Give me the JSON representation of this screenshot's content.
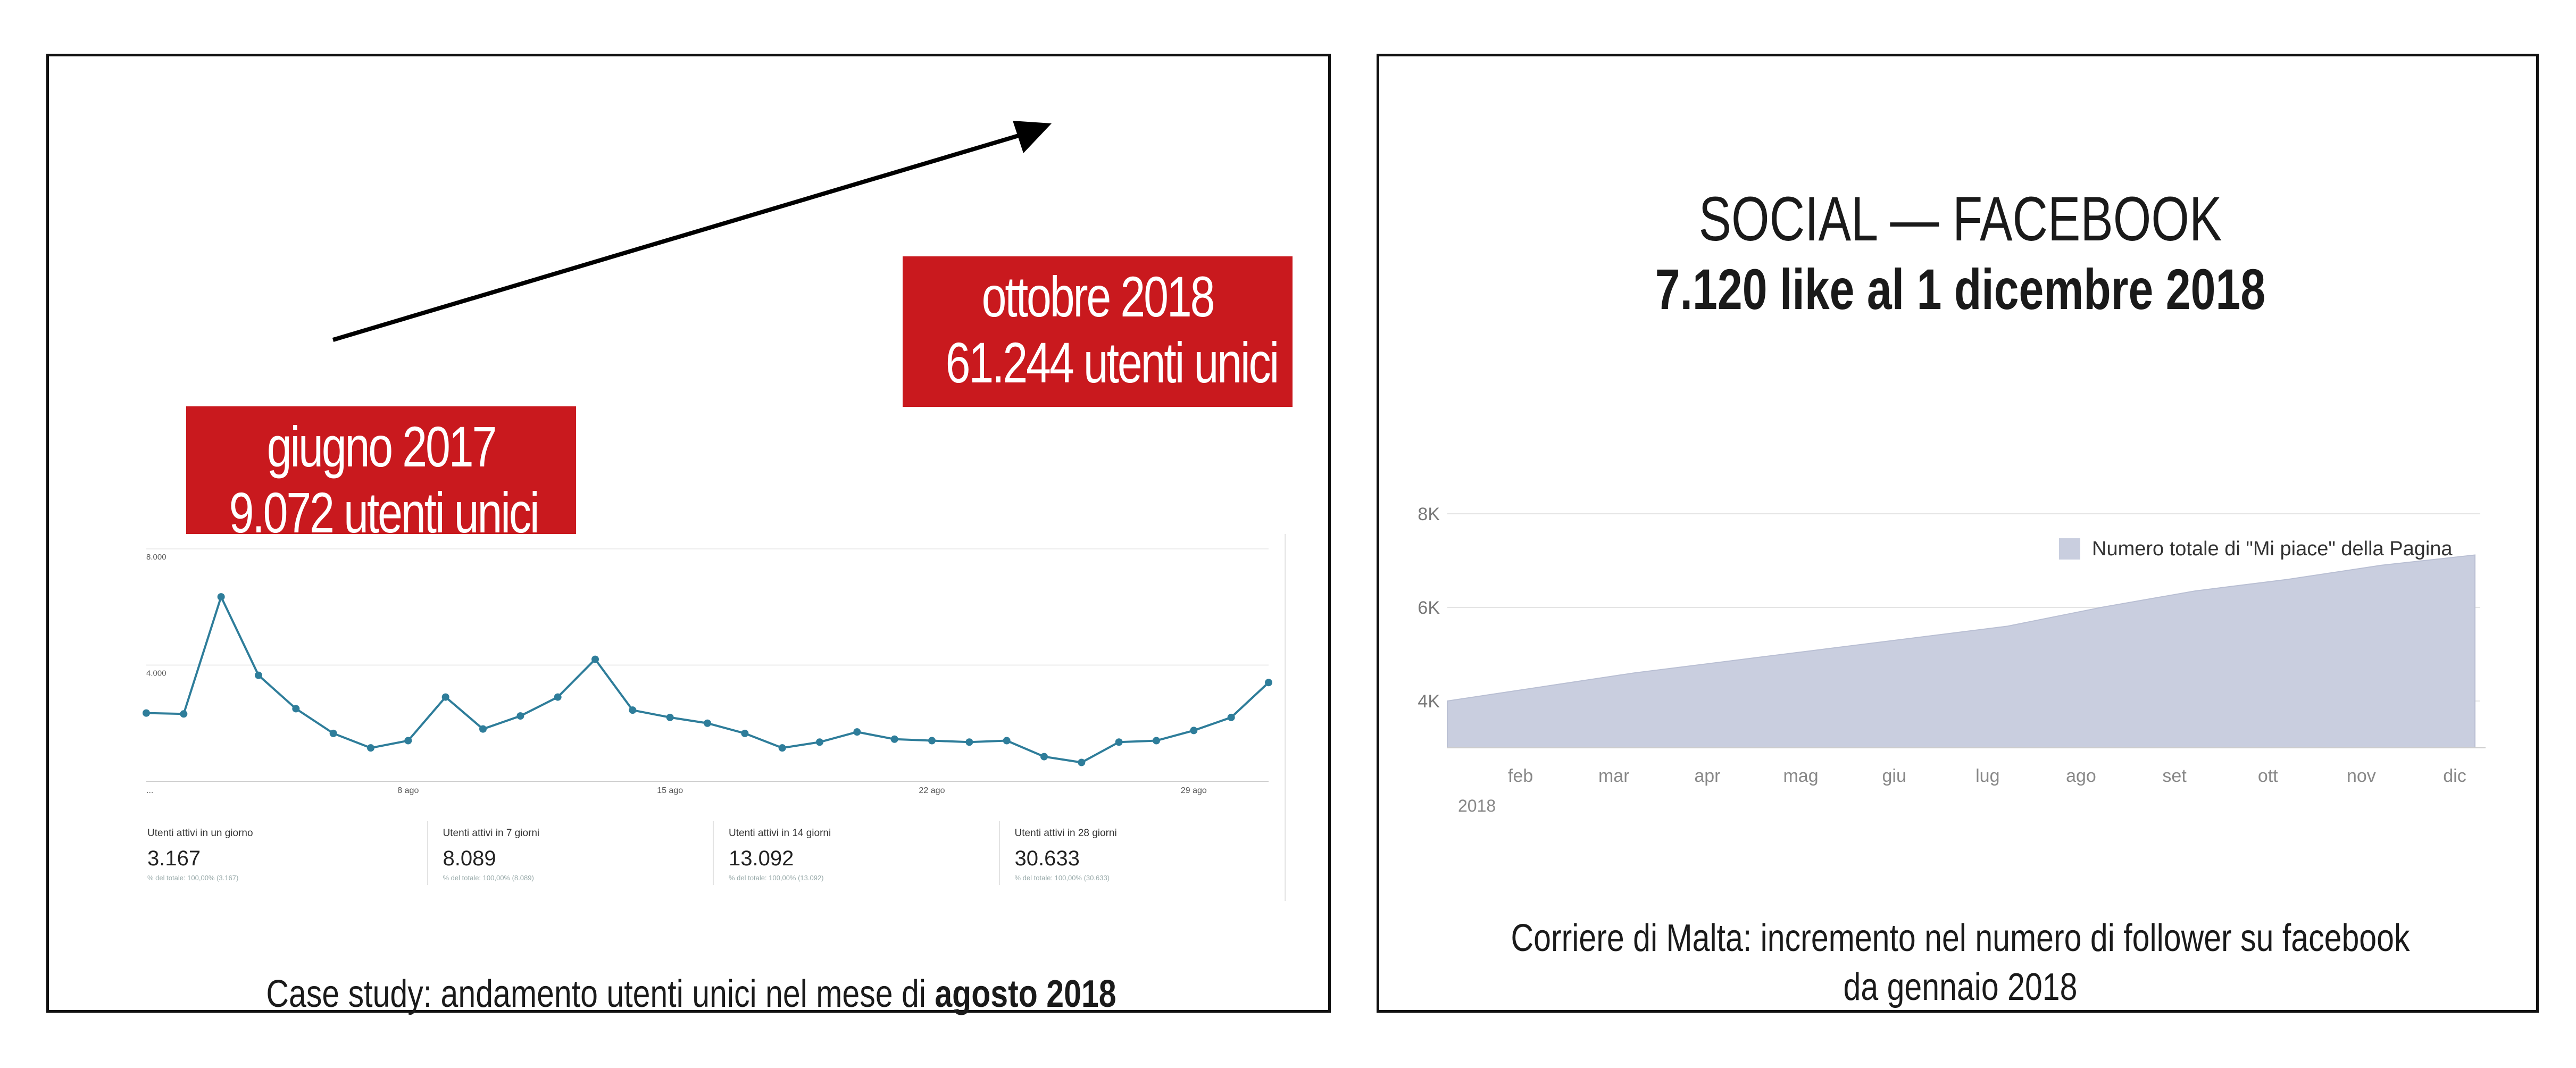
{
  "slide_left": {
    "box_june": {
      "line1": "giugno 2017",
      "line2": "9.072 utenti unici"
    },
    "box_oct": {
      "line1": "ottobre 2018",
      "line2": "61.244 utenti unici"
    },
    "caption_prefix": "Case study: andamento utenti unici nel mese di ",
    "caption_bold": "agosto 2018",
    "metrics": [
      {
        "label": "Utenti attivi in un giorno",
        "value": "3.167",
        "sub": "% del totale: 100,00% (3.167)"
      },
      {
        "label": "Utenti attivi in 7 giorni",
        "value": "8.089",
        "sub": "% del totale: 100,00% (8.089)"
      },
      {
        "label": "Utenti attivi in 14 giorni",
        "value": "13.092",
        "sub": "% del totale: 100,00% (13.092)"
      },
      {
        "label": "Utenti attivi in 28 giorni",
        "value": "30.633",
        "sub": "% del totale: 100,00% (30.633)"
      }
    ]
  },
  "slide_right": {
    "title_line1": "SOCIAL — FACEBOOK",
    "title_line2": "7.120 like al 1 dicembre 2018",
    "caption_line1": "Corriere di Malta: incremento nel numero di follower su facebook",
    "caption_line2": "da gennaio 2018"
  },
  "colors": {
    "red": "#c9191e",
    "line": "#2e7d9a",
    "area": "#c9cedf"
  },
  "chart_data": [
    {
      "type": "line",
      "title": "",
      "x_tick_labels": [
        "...",
        "8 ago",
        "15 ago",
        "22 ago",
        "29 ago"
      ],
      "y_tick_labels": [
        "8.000",
        "4.000"
      ],
      "ylim": [
        0,
        8000
      ],
      "x": [
        1,
        2,
        3,
        4,
        5,
        6,
        7,
        8,
        9,
        10,
        11,
        12,
        13,
        14,
        15,
        16,
        17,
        18,
        19,
        20,
        21,
        22,
        23,
        24,
        25,
        26,
        27,
        28,
        29,
        30,
        31
      ],
      "values": [
        2350,
        2320,
        6350,
        3650,
        2500,
        1650,
        1150,
        1400,
        2900,
        1800,
        2250,
        2900,
        4200,
        2450,
        2200,
        2000,
        1650,
        1150,
        1350,
        1700,
        1450,
        1400,
        1350,
        1400,
        850,
        650,
        1350,
        1400,
        1750,
        2200,
        3400
      ],
      "grid": true
    },
    {
      "type": "area",
      "title": "",
      "legend": [
        "Numero totale di \"Mi piace\" della Pagina"
      ],
      "legend_position": "top-right",
      "x_tick_labels": [
        "feb",
        "mar",
        "apr",
        "mag",
        "giu",
        "lug",
        "ago",
        "set",
        "ott",
        "nov",
        "dic"
      ],
      "x_sublabel": "2018",
      "y_tick_labels": [
        "8K",
        "6K",
        "4K"
      ],
      "ylim": [
        3000,
        8000
      ],
      "x": [
        "gen",
        "feb",
        "mar",
        "apr",
        "mag",
        "giu",
        "lug",
        "ago",
        "set",
        "ott",
        "nov",
        "dic"
      ],
      "values": [
        4000,
        4300,
        4600,
        4850,
        5100,
        5350,
        5600,
        6000,
        6350,
        6600,
        6900,
        7120
      ],
      "grid": true
    }
  ]
}
